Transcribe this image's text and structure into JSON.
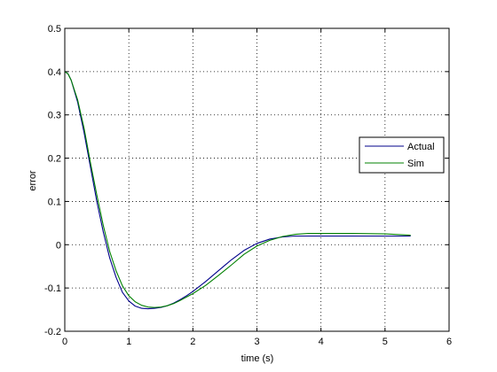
{
  "chart_data": {
    "type": "line",
    "title": "",
    "xlabel": "time (s)",
    "ylabel": "error",
    "xlim": [
      0,
      6
    ],
    "ylim": [
      -0.2,
      0.5
    ],
    "x_ticks": [
      0,
      1,
      2,
      3,
      4,
      5,
      6
    ],
    "y_ticks": [
      -0.2,
      -0.1,
      0,
      0.1,
      0.2,
      0.3,
      0.4,
      0.5
    ],
    "x_tick_labels": [
      "0",
      "1",
      "2",
      "3",
      "4",
      "5",
      "6"
    ],
    "y_tick_labels": [
      "-0.2",
      "-0.1",
      "0",
      "0.1",
      "0.2",
      "0.3",
      "0.4",
      "0.5"
    ],
    "grid": true,
    "legend_position": "right",
    "series": [
      {
        "name": "Actual",
        "color": "#00008b",
        "x": [
          0,
          0.05,
          0.1,
          0.2,
          0.3,
          0.4,
          0.5,
          0.6,
          0.7,
          0.8,
          0.9,
          1.0,
          1.1,
          1.2,
          1.3,
          1.4,
          1.5,
          1.6,
          1.7,
          1.8,
          1.9,
          2.0,
          2.2,
          2.4,
          2.6,
          2.8,
          3.0,
          3.2,
          3.4,
          3.6,
          3.8,
          4.0,
          4.5,
          5.0,
          5.4
        ],
        "y": [
          0.4,
          0.395,
          0.38,
          0.33,
          0.26,
          0.18,
          0.1,
          0.03,
          -0.03,
          -0.075,
          -0.11,
          -0.13,
          -0.142,
          -0.147,
          -0.148,
          -0.147,
          -0.145,
          -0.141,
          -0.135,
          -0.127,
          -0.118,
          -0.108,
          -0.085,
          -0.06,
          -0.035,
          -0.013,
          0.003,
          0.013,
          0.018,
          0.02,
          0.02,
          0.02,
          0.02,
          0.02,
          0.02
        ]
      },
      {
        "name": "Sim",
        "color": "#008000",
        "x": [
          0,
          0.05,
          0.1,
          0.2,
          0.3,
          0.4,
          0.5,
          0.6,
          0.7,
          0.8,
          0.9,
          1.0,
          1.1,
          1.2,
          1.3,
          1.4,
          1.5,
          1.6,
          1.7,
          1.8,
          1.9,
          2.0,
          2.2,
          2.4,
          2.6,
          2.8,
          3.0,
          3.2,
          3.4,
          3.6,
          3.8,
          4.0,
          4.5,
          5.0,
          5.4
        ],
        "y": [
          0.4,
          0.395,
          0.38,
          0.335,
          0.27,
          0.19,
          0.115,
          0.045,
          -0.015,
          -0.06,
          -0.095,
          -0.118,
          -0.132,
          -0.14,
          -0.144,
          -0.145,
          -0.144,
          -0.141,
          -0.136,
          -0.129,
          -0.121,
          -0.113,
          -0.094,
          -0.071,
          -0.047,
          -0.022,
          -0.003,
          0.01,
          0.019,
          0.024,
          0.026,
          0.026,
          0.026,
          0.025,
          0.022
        ]
      }
    ]
  }
}
